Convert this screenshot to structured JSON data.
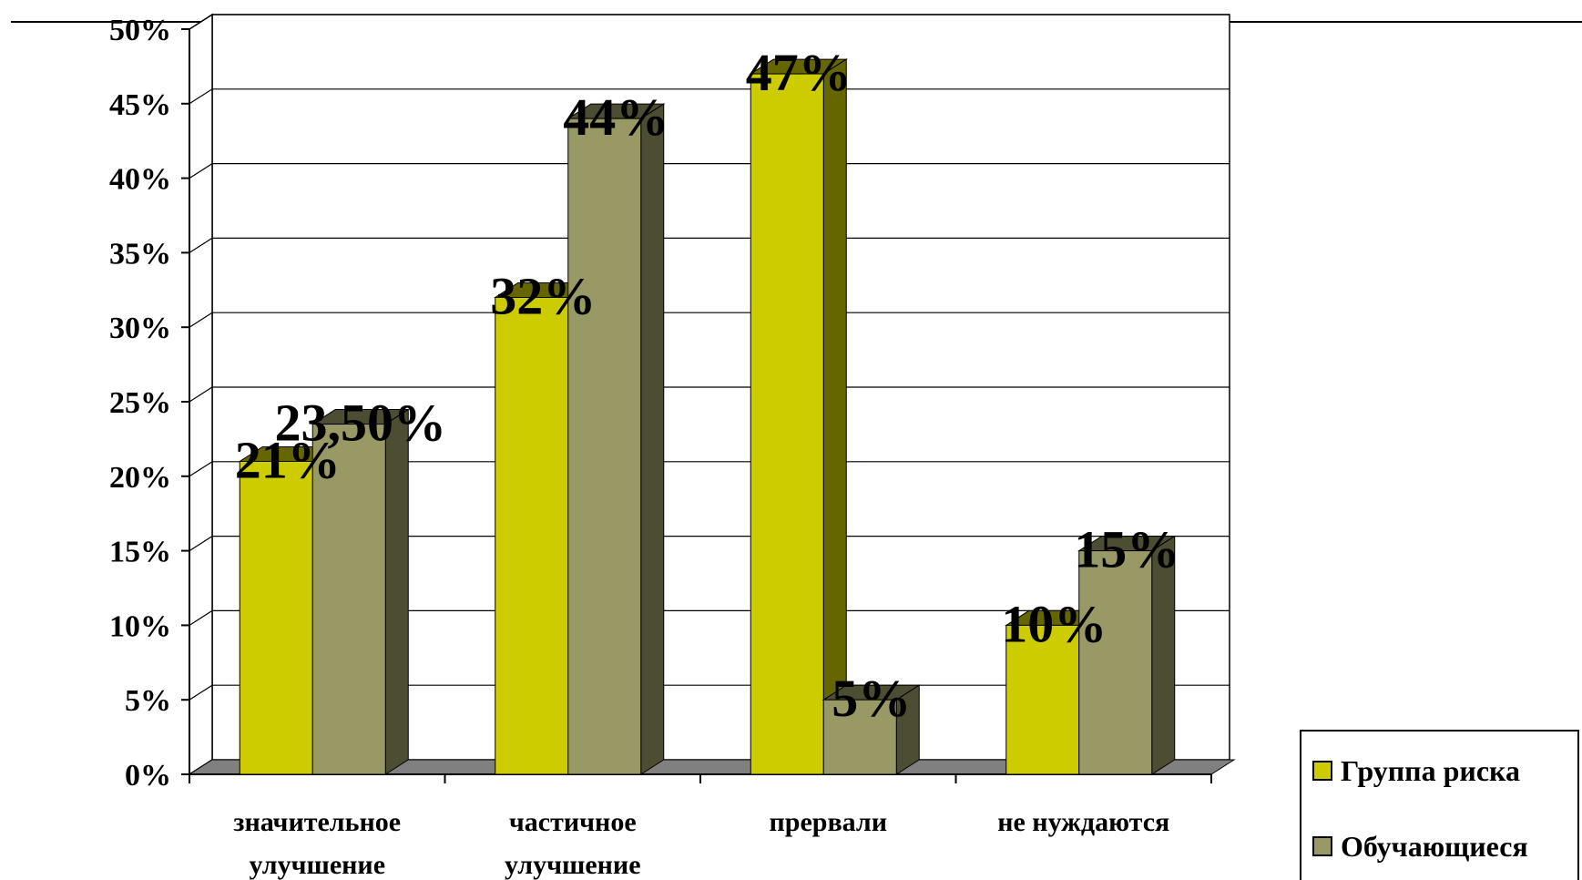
{
  "chart_data": {
    "type": "bar",
    "categories": [
      [
        "значительное",
        "улучшение"
      ],
      [
        "частичное",
        "улучшение"
      ],
      [
        "прервали"
      ],
      [
        "не нуждаются"
      ]
    ],
    "series": [
      {
        "name": "Группа риска",
        "values": [
          21,
          32,
          47,
          10
        ],
        "labels": [
          "21%",
          "32%",
          "47%",
          "10%"
        ],
        "color": "#cccc00",
        "side_color": "#666600"
      },
      {
        "name": "Обучающиеся",
        "values": [
          23.5,
          44,
          5,
          15
        ],
        "labels": [
          "23,50%",
          "44%",
          "5%",
          "15%"
        ],
        "color": "#999966",
        "side_color": "#4d4d33"
      }
    ],
    "yticks": [
      "0%",
      "5%",
      "10%",
      "15%",
      "20%",
      "25%",
      "30%",
      "35%",
      "40%",
      "45%",
      "50%"
    ],
    "ylim": [
      0,
      50
    ],
    "grid": true,
    "legend": "bottom-right",
    "style": "3d-clustered-column"
  }
}
